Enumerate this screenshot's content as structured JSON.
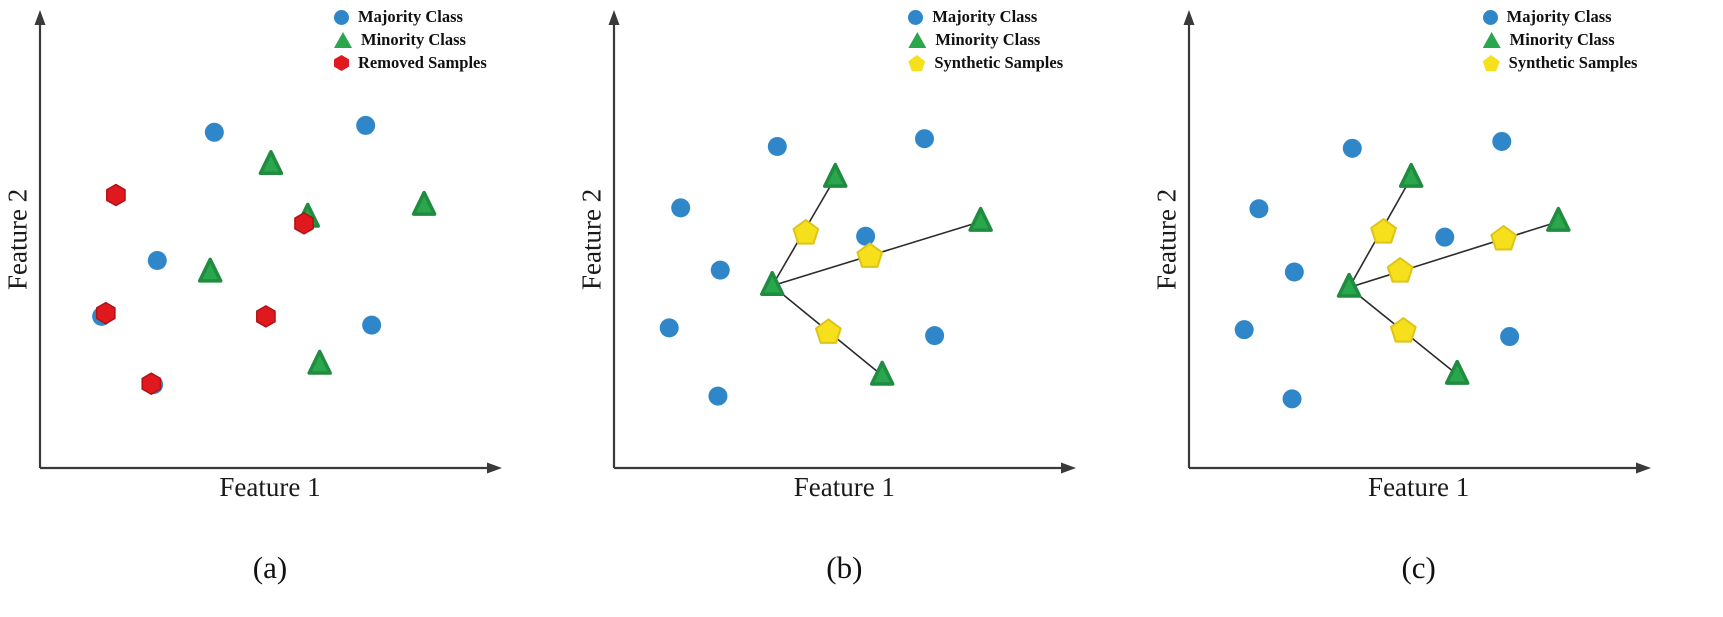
{
  "colors": {
    "majority": "#2f87ca",
    "minority": "#2aa74d",
    "minority_edge": "#1f8c3f",
    "removed": "#e0191f",
    "removed_edge": "#b01216",
    "synthetic": "#f6e01c",
    "synthetic_edge": "#ddc419",
    "axis": "#3a3a3a",
    "connector": "#2b2b2b",
    "text": "#1a1a1a",
    "background": "#ffffff"
  },
  "chart_data": [
    {
      "type": "scatter",
      "caption": "(a)",
      "xlabel": "Feature 1",
      "ylabel": "Feature 2",
      "xlim": [
        0,
        100
      ],
      "ylim": [
        0,
        100
      ],
      "grid": false,
      "legend_position": "top-right",
      "legend": [
        {
          "label": "Majority Class",
          "marker": "circle",
          "color_key": "majority"
        },
        {
          "label": "Minority Class",
          "marker": "triangle",
          "color_key": "minority"
        },
        {
          "label": "Removed Samples",
          "marker": "hexagon",
          "color_key": "removed"
        }
      ],
      "series": [
        {
          "key": "majority",
          "name": "Majority Class",
          "marker": "circle",
          "color_key": "majority",
          "points": [
            [
              37.9,
              73.3
            ],
            [
              70.8,
              74.8
            ],
            [
              25.5,
              45.3
            ],
            [
              13.4,
              33.1
            ],
            [
              72.1,
              31.2
            ],
            [
              24.7,
              18.2
            ]
          ]
        },
        {
          "key": "minority",
          "name": "Minority Class",
          "marker": "triangle",
          "color_key": "minority",
          "points": [
            [
              50.2,
              66.2
            ],
            [
              83.5,
              57.3
            ],
            [
              58.2,
              54.7
            ],
            [
              37.0,
              42.7
            ],
            [
              60.8,
              22.6
            ]
          ]
        },
        {
          "key": "removed",
          "name": "Removed Samples",
          "marker": "hexagon",
          "color_key": "removed",
          "points": [
            [
              16.5,
              59.6
            ],
            [
              57.4,
              53.4
            ],
            [
              14.3,
              33.8
            ],
            [
              49.1,
              33.1
            ],
            [
              24.2,
              18.4
            ]
          ]
        }
      ],
      "connectors": []
    },
    {
      "type": "scatter",
      "caption": "(b)",
      "xlabel": "Feature 1",
      "ylabel": "Feature 2",
      "xlim": [
        0,
        100
      ],
      "ylim": [
        0,
        100
      ],
      "grid": false,
      "legend_position": "top-right",
      "legend": [
        {
          "label": "Majority Class",
          "marker": "circle",
          "color_key": "majority"
        },
        {
          "label": "Minority Class",
          "marker": "triangle",
          "color_key": "minority"
        },
        {
          "label": "Synthetic Samples",
          "marker": "pentagon",
          "color_key": "synthetic"
        }
      ],
      "series": [
        {
          "key": "majority",
          "name": "Majority Class",
          "marker": "circle",
          "color_key": "majority",
          "points": [
            [
              35.5,
              70.2
            ],
            [
              67.5,
              71.9
            ],
            [
              14.5,
              56.8
            ],
            [
              54.7,
              50.6
            ],
            [
              23.1,
              43.2
            ],
            [
              12.0,
              30.6
            ],
            [
              69.7,
              28.9
            ],
            [
              22.6,
              15.7
            ]
          ]
        },
        {
          "key": "minority",
          "name": "Minority Class",
          "marker": "triangle",
          "color_key": "minority",
          "points": [
            [
              48.1,
              63.4
            ],
            [
              79.7,
              53.8
            ],
            [
              34.4,
              39.8
            ],
            [
              58.3,
              20.2
            ]
          ]
        },
        {
          "key": "synthetic",
          "name": "Synthetic Samples",
          "marker": "pentagon",
          "color_key": "synthetic",
          "points": [
            [
              41.7,
              51.3
            ],
            [
              55.6,
              46.2
            ],
            [
              46.6,
              29.6
            ]
          ]
        }
      ],
      "connectors": [
        [
          [
            34.4,
            39.8
          ],
          [
            48.1,
            63.4
          ]
        ],
        [
          [
            34.4,
            39.8
          ],
          [
            79.7,
            53.8
          ]
        ],
        [
          [
            34.4,
            39.8
          ],
          [
            58.3,
            20.2
          ]
        ]
      ]
    },
    {
      "type": "scatter",
      "caption": "(c)",
      "xlabel": "Feature 1",
      "ylabel": "Feature 2",
      "xlim": [
        0,
        100
      ],
      "ylim": [
        0,
        100
      ],
      "grid": false,
      "legend_position": "top-right",
      "legend": [
        {
          "label": "Majority Class",
          "marker": "circle",
          "color_key": "majority"
        },
        {
          "label": "Minority Class",
          "marker": "triangle",
          "color_key": "minority"
        },
        {
          "label": "Synthetic Samples",
          "marker": "pentagon",
          "color_key": "synthetic"
        }
      ],
      "series": [
        {
          "key": "majority",
          "name": "Majority Class",
          "marker": "circle",
          "color_key": "majority",
          "points": [
            [
              35.5,
              69.8
            ],
            [
              68.0,
              71.3
            ],
            [
              15.2,
              56.6
            ],
            [
              55.6,
              50.4
            ],
            [
              22.9,
              42.8
            ],
            [
              12.0,
              30.2
            ],
            [
              69.7,
              28.7
            ],
            [
              22.4,
              15.1
            ]
          ]
        },
        {
          "key": "minority",
          "name": "Minority Class",
          "marker": "triangle",
          "color_key": "minority",
          "points": [
            [
              48.3,
              63.4
            ],
            [
              80.3,
              53.8
            ],
            [
              34.8,
              39.4
            ],
            [
              58.3,
              20.4
            ]
          ]
        },
        {
          "key": "synthetic",
          "name": "Synthetic Samples",
          "marker": "pentagon",
          "color_key": "synthetic",
          "points": [
            [
              42.3,
              51.5
            ],
            [
              45.9,
              43.0
            ],
            [
              68.4,
              50.0
            ],
            [
              46.6,
              29.9
            ]
          ]
        }
      ],
      "connectors": [
        [
          [
            34.8,
            39.4
          ],
          [
            48.3,
            63.4
          ]
        ],
        [
          [
            34.8,
            39.4
          ],
          [
            80.3,
            53.8
          ]
        ],
        [
          [
            34.8,
            39.4
          ],
          [
            58.3,
            20.4
          ]
        ]
      ]
    }
  ]
}
